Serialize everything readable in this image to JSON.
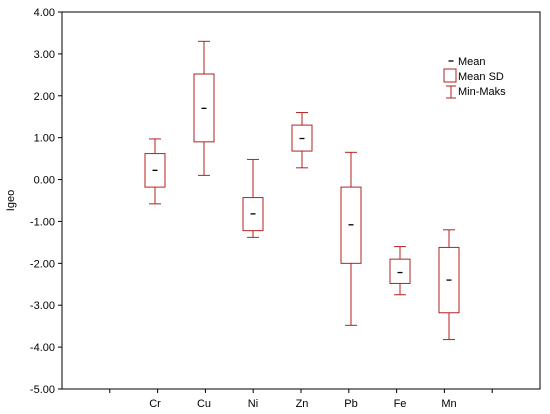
{
  "chart_data": {
    "type": "boxplot",
    "title": "",
    "xlabel": "",
    "ylabel": "Igeo",
    "ylim": [
      -5.0,
      4.0
    ],
    "yticks": [
      "4.00",
      "3.00",
      "2.00",
      "1.00",
      "0.00",
      "-1.00",
      "-2.00",
      "-3.00",
      "-4.00",
      "-5.00"
    ],
    "categories": [
      "Cr",
      "Cu",
      "Ni",
      "Zn",
      "Pb",
      "Fe",
      "Mn"
    ],
    "series": [
      {
        "category": "Cr",
        "mean": 0.22,
        "sd_low": -0.18,
        "sd_high": 0.62,
        "min": -0.58,
        "max": 0.97
      },
      {
        "category": "Cu",
        "mean": 1.7,
        "sd_low": 0.9,
        "sd_high": 2.52,
        "min": 0.1,
        "max": 3.3
      },
      {
        "category": "Ni",
        "mean": -0.82,
        "sd_low": -1.22,
        "sd_high": -0.43,
        "min": -1.38,
        "max": 0.48
      },
      {
        "category": "Zn",
        "mean": 0.98,
        "sd_low": 0.68,
        "sd_high": 1.3,
        "min": 0.28,
        "max": 1.6
      },
      {
        "category": "Pb",
        "mean": -1.08,
        "sd_low": -2.0,
        "sd_high": -0.18,
        "min": -3.48,
        "max": 0.65
      },
      {
        "category": "Fe",
        "mean": -2.22,
        "sd_low": -2.48,
        "sd_high": -1.9,
        "min": -2.75,
        "max": -1.6
      },
      {
        "category": "Mn",
        "mean": -2.4,
        "sd_low": -3.18,
        "sd_high": -1.62,
        "min": -3.82,
        "max": -1.2
      }
    ],
    "legend": {
      "position": "top-right",
      "entries": [
        "Mean",
        "Mean SD",
        "Min-Maks"
      ]
    },
    "grid": false,
    "colors": {
      "box": "#b22222",
      "mean": "#000000",
      "axis": "#000000"
    }
  }
}
